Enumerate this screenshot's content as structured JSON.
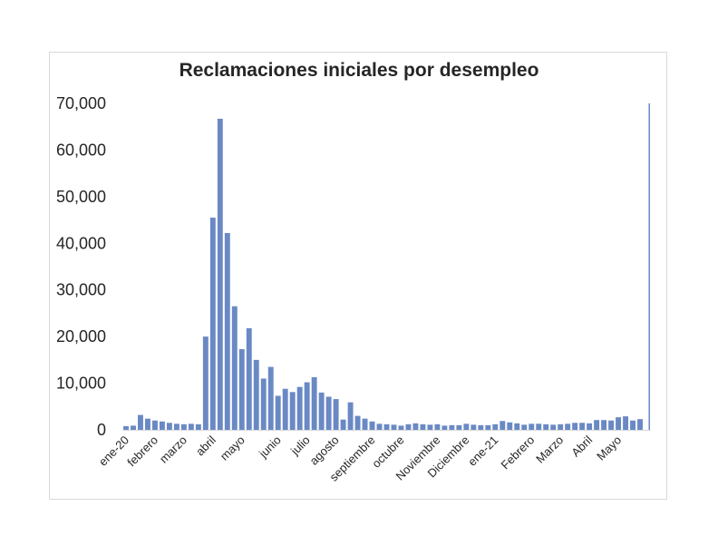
{
  "chart_data": {
    "type": "bar",
    "title": "Reclamaciones iniciales por desempleo",
    "xlabel": "",
    "ylabel": "",
    "ylim": [
      0,
      70000
    ],
    "yticks": [
      "0",
      "10,000",
      "20,000",
      "30,000",
      "40,000",
      "50,000",
      "60,000",
      "70,000"
    ],
    "xtick_labels": [
      {
        "label": "ene-20",
        "index": 0
      },
      {
        "label": "febrero",
        "index": 4
      },
      {
        "label": "marzo",
        "index": 8
      },
      {
        "label": "abril",
        "index": 12
      },
      {
        "label": "mayo",
        "index": 16
      },
      {
        "label": "junio",
        "index": 21
      },
      {
        "label": "julio",
        "index": 25
      },
      {
        "label": "agosto",
        "index": 29
      },
      {
        "label": "septiembre",
        "index": 34
      },
      {
        "label": "octubre",
        "index": 38
      },
      {
        "label": "Noviembre",
        "index": 43
      },
      {
        "label": "Diciembre",
        "index": 47
      },
      {
        "label": "ene-21",
        "index": 51
      },
      {
        "label": "Febrero",
        "index": 56
      },
      {
        "label": "Marzo",
        "index": 60
      },
      {
        "label": "Abril",
        "index": 64
      },
      {
        "label": "Mayo",
        "index": 68
      }
    ],
    "color": "#6a89c4",
    "grid": false,
    "legend": "none",
    "values": [
      800,
      900,
      3200,
      2400,
      2000,
      1800,
      1500,
      1300,
      1200,
      1300,
      1200,
      20000,
      45500,
      66700,
      42200,
      26500,
      17300,
      21800,
      15000,
      11000,
      13500,
      7300,
      8800,
      8100,
      9200,
      10200,
      11300,
      8000,
      7100,
      6600,
      2200,
      5900,
      3000,
      2400,
      1800,
      1300,
      1200,
      1100,
      900,
      1200,
      1400,
      1200,
      1100,
      1200,
      900,
      1000,
      1000,
      1300,
      1100,
      1000,
      1000,
      1200,
      1900,
      1600,
      1400,
      1100,
      1300,
      1300,
      1200,
      1100,
      1200,
      1300,
      1500,
      1500,
      1400,
      2100,
      2100,
      2000,
      2700,
      2900,
      2000,
      2300,
      70000
    ]
  }
}
